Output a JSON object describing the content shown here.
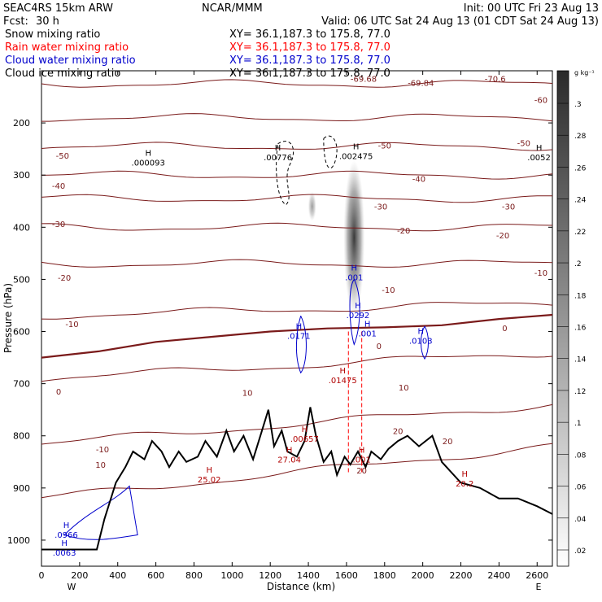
{
  "header": {
    "model": "SEAC4RS 15km ARW",
    "org": "NCAR/MMM",
    "init": "Init: 00 UTC Fri 23 Aug 13",
    "fcst_label": "Fcst:",
    "fcst_value": "30 h",
    "valid": "Valid: 06 UTC Sat 24 Aug 13 (01 CDT Sat 24 Aug 13)"
  },
  "fields": [
    {
      "name": "Snow mixing ratio",
      "xy": "XY=  36.1,187.3 to 175.8, 77.0",
      "color": "#000000"
    },
    {
      "name": "Rain water mixing ratio",
      "xy": "XY=  36.1,187.3 to 175.8, 77.0",
      "color": "#ff0000"
    },
    {
      "name": "Cloud water mixing ratio",
      "xy": "XY=  36.1,187.3 to 175.8, 77.0",
      "color": "#0000cc"
    },
    {
      "name": "Cloud ice mixing ratio",
      "xy": "XY=  36.1,187.3 to 175.8, 77.0",
      "color": "#000000"
    }
  ],
  "colorbar": {
    "unit": "g kg⁻¹",
    "labels": [
      ".3",
      ".28",
      ".26",
      ".24",
      ".22",
      ".2",
      ".18",
      ".16",
      ".14",
      ".12",
      ".1",
      ".08",
      ".06",
      ".04",
      ".02"
    ]
  },
  "chart_data": {
    "type": "cross-section",
    "xlabel": "Distance (km)",
    "ylabel": "Pressure (hPa)",
    "xlim": [
      0,
      2680
    ],
    "ylim": [
      1050,
      100
    ],
    "x_ticks": [
      0,
      200,
      400,
      600,
      800,
      1000,
      1200,
      1400,
      1600,
      1800,
      2000,
      2200,
      2400,
      2600
    ],
    "y_ticks": [
      200,
      300,
      400,
      500,
      600,
      700,
      800,
      900,
      1000
    ],
    "x_end_labels": {
      "left": "W",
      "right": "E"
    },
    "temperature_contour_labels": [
      {
        "text": "-69.68",
        "x": 1690,
        "p": 115
      },
      {
        "text": "-69.84",
        "x": 1990,
        "p": 123
      },
      {
        "text": "-70.6",
        "x": 2380,
        "p": 115
      },
      {
        "text": "-60",
        "x": 2620,
        "p": 155
      },
      {
        "text": "-50",
        "x": 2530,
        "p": 238
      },
      {
        "text": "-50",
        "x": 1800,
        "p": 243
      },
      {
        "text": "-50",
        "x": 110,
        "p": 262
      },
      {
        "text": "-40",
        "x": 90,
        "p": 320
      },
      {
        "text": "-40",
        "x": 1980,
        "p": 307
      },
      {
        "text": "-30",
        "x": 1780,
        "p": 360
      },
      {
        "text": "-30",
        "x": 2450,
        "p": 360
      },
      {
        "text": "-30",
        "x": 90,
        "p": 393
      },
      {
        "text": "-20",
        "x": 1900,
        "p": 406
      },
      {
        "text": "-20",
        "x": 2420,
        "p": 415
      },
      {
        "text": "-20",
        "x": 120,
        "p": 496
      },
      {
        "text": "-10",
        "x": 2620,
        "p": 487
      },
      {
        "text": "-10",
        "x": 1820,
        "p": 520
      },
      {
        "text": "-10",
        "x": 160,
        "p": 585
      },
      {
        "text": "0",
        "x": 2430,
        "p": 593
      },
      {
        "text": "0",
        "x": 1770,
        "p": 627
      },
      {
        "text": "0",
        "x": 90,
        "p": 715
      },
      {
        "text": "10",
        "x": 1900,
        "p": 707
      },
      {
        "text": "10",
        "x": 1080,
        "p": 717
      },
      {
        "text": "10",
        "x": 310,
        "p": 855
      },
      {
        "text": "-10",
        "x": 320,
        "p": 825
      },
      {
        "text": "20",
        "x": 2130,
        "p": 810
      },
      {
        "text": "20",
        "x": 1870,
        "p": 790
      },
      {
        "text": "20",
        "x": 1680,
        "p": 866
      }
    ],
    "temperature_contour_levels": [
      -70,
      -60,
      -50,
      -40,
      -30,
      -20,
      -10,
      0,
      10,
      20
    ],
    "zero_isotherm_p": [
      [
        0,
        650
      ],
      [
        300,
        638
      ],
      [
        600,
        620
      ],
      [
        900,
        610
      ],
      [
        1200,
        600
      ],
      [
        1500,
        594
      ],
      [
        1800,
        592
      ],
      [
        2100,
        588
      ],
      [
        2400,
        576
      ],
      [
        2680,
        568
      ]
    ],
    "terrain_p": [
      [
        0,
        1018
      ],
      [
        290,
        1018
      ],
      [
        330,
        960
      ],
      [
        390,
        890
      ],
      [
        440,
        860
      ],
      [
        480,
        830
      ],
      [
        540,
        845
      ],
      [
        580,
        810
      ],
      [
        630,
        830
      ],
      [
        670,
        860
      ],
      [
        720,
        830
      ],
      [
        760,
        850
      ],
      [
        820,
        840
      ],
      [
        860,
        810
      ],
      [
        920,
        840
      ],
      [
        970,
        790
      ],
      [
        1010,
        830
      ],
      [
        1060,
        800
      ],
      [
        1110,
        845
      ],
      [
        1140,
        810
      ],
      [
        1190,
        750
      ],
      [
        1220,
        820
      ],
      [
        1260,
        790
      ],
      [
        1290,
        830
      ],
      [
        1340,
        840
      ],
      [
        1380,
        810
      ],
      [
        1410,
        745
      ],
      [
        1440,
        800
      ],
      [
        1480,
        850
      ],
      [
        1520,
        830
      ],
      [
        1550,
        875
      ],
      [
        1590,
        840
      ],
      [
        1620,
        855
      ],
      [
        1660,
        830
      ],
      [
        1700,
        860
      ],
      [
        1730,
        830
      ],
      [
        1780,
        845
      ],
      [
        1820,
        825
      ],
      [
        1870,
        810
      ],
      [
        1920,
        800
      ],
      [
        1980,
        820
      ],
      [
        2050,
        800
      ],
      [
        2100,
        850
      ],
      [
        2200,
        890
      ],
      [
        2300,
        900
      ],
      [
        2400,
        920
      ],
      [
        2500,
        920
      ],
      [
        2600,
        935
      ],
      [
        2680,
        950
      ]
    ],
    "maxima_labels": [
      {
        "field": "Cloud ice mixing ratio",
        "text": ".000093",
        "x": 560,
        "p": 272
      },
      {
        "field": "Cloud ice mixing ratio",
        "text": ".00776",
        "x": 1240,
        "p": 262
      },
      {
        "field": "Cloud ice mixing ratio",
        "text": ".002475",
        "x": 1650,
        "p": 260
      },
      {
        "field": "Cloud ice mixing ratio",
        "text": ".0052",
        "x": 2610,
        "p": 262
      },
      {
        "field": "Cloud water mixing ratio",
        "text": ".001",
        "x": 1640,
        "p": 492
      },
      {
        "field": "Cloud water mixing ratio",
        "text": ".0292",
        "x": 1660,
        "p": 565
      },
      {
        "field": "Cloud water mixing ratio",
        "text": ".0171",
        "x": 1350,
        "p": 605
      },
      {
        "field": "Cloud water mixing ratio",
        "text": ".001",
        "x": 1710,
        "p": 600
      },
      {
        "field": "Cloud water mixing ratio",
        "text": ".0103",
        "x": 1990,
        "p": 614
      },
      {
        "field": "Cloud water mixing ratio",
        "text": ".0966",
        "x": 130,
        "p": 986
      },
      {
        "field": "Cloud water mixing ratio",
        "text": ".0063",
        "x": 120,
        "p": 1020
      },
      {
        "field": "Rain water mixing ratio",
        "text": ".01475",
        "x": 1580,
        "p": 690
      },
      {
        "field": "Rain water mixing ratio",
        "text": ".00657",
        "x": 1380,
        "p": 802
      },
      {
        "field": "Rain water mixing ratio",
        "text": "27.04",
        "x": 1300,
        "p": 842
      },
      {
        "field": "Rain water mixing ratio",
        "text": "25.02",
        "x": 880,
        "p": 880
      },
      {
        "field": "Rain water mixing ratio",
        "text": ".001",
        "x": 1680,
        "p": 842
      },
      {
        "field": "Rain water mixing ratio",
        "text": "20.2",
        "x": 2220,
        "p": 888
      }
    ],
    "snow_shading_max": 0.24
  }
}
